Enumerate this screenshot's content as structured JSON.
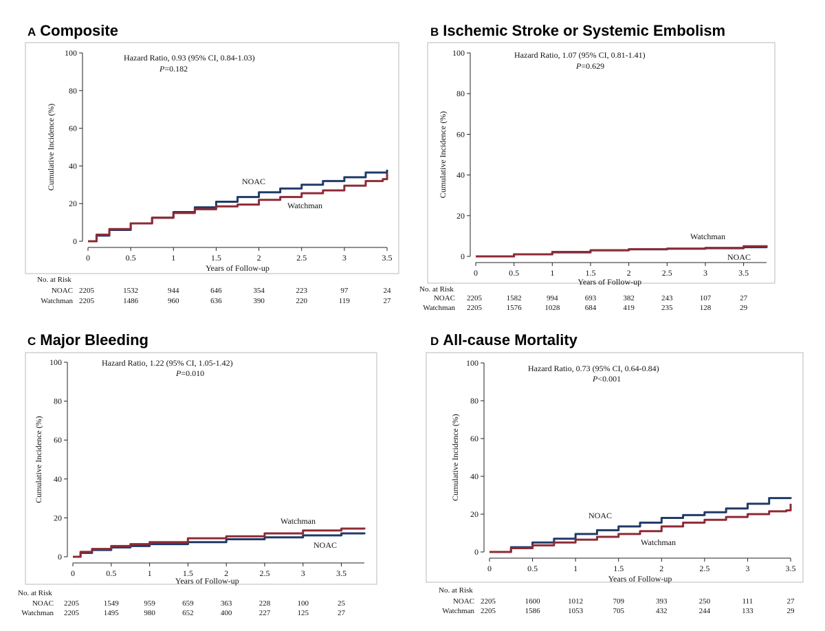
{
  "colors": {
    "noac": "#1f3a68",
    "watchman": "#8e2a35",
    "axis": "#222222",
    "text": "#111111"
  },
  "chart_data": [
    {
      "type": "line",
      "letter": "A",
      "title": "Composite",
      "ylabel": "Cumulative Incidence (%)",
      "xlabel": "Years of Follow-up",
      "ylim": [
        0,
        100
      ],
      "yticks": [
        "0",
        "20",
        "40",
        "60",
        "80",
        "100"
      ],
      "xlim": [
        0,
        3.5
      ],
      "xticks": [
        "0",
        "0.5",
        "1",
        "1.5",
        "2",
        "2.5",
        "3",
        "3.5"
      ],
      "hr_text": "Hazard Ratio, 0.93 (95% CI, 0.84-1.03)",
      "p_label": "P",
      "p_value": "=0.182",
      "series": [
        {
          "name": "NOAC",
          "label": "NOAC",
          "x": [
            0,
            0.1,
            0.25,
            0.5,
            0.75,
            1,
            1.25,
            1.5,
            1.75,
            2,
            2.25,
            2.5,
            2.75,
            3,
            3.25,
            3.5
          ],
          "values": [
            0,
            3,
            6,
            9.5,
            12.5,
            15.5,
            18,
            21,
            23.5,
            26,
            28,
            30,
            32,
            34,
            36.5,
            38
          ]
        },
        {
          "name": "Watchman",
          "label": "Watchman",
          "x": [
            0,
            0.1,
            0.25,
            0.5,
            0.75,
            1,
            1.25,
            1.5,
            1.75,
            2,
            2.25,
            2.5,
            2.75,
            3,
            3.25,
            3.45,
            3.5
          ],
          "values": [
            0,
            3.5,
            6.5,
            9.5,
            12.5,
            15,
            17,
            18.5,
            19.5,
            22,
            23.5,
            25.5,
            27,
            29.5,
            32,
            33,
            36
          ]
        }
      ],
      "risk_table": {
        "header": "No. at Risk",
        "rows": [
          {
            "label": "NOAC",
            "first": "2205",
            "values": [
              "1532",
              "944",
              "646",
              "354",
              "223",
              "97",
              "24"
            ]
          },
          {
            "label": "Watchman",
            "first": "2205",
            "values": [
              "1486",
              "960",
              "636",
              "390",
              "220",
              "119",
              "27"
            ]
          }
        ]
      }
    },
    {
      "type": "line",
      "letter": "B",
      "title": "Ischemic Stroke or Systemic Embolism",
      "ylabel": "Cumulative Incidence (%)",
      "xlabel": "Years of Follow-up",
      "ylim": [
        0,
        100
      ],
      "yticks": [
        "0",
        "20",
        "40",
        "60",
        "80",
        "100"
      ],
      "xlim": [
        0,
        3.8
      ],
      "xticks": [
        "0",
        "0.5",
        "1",
        "1.5",
        "2",
        "2.5",
        "3",
        "3.5"
      ],
      "hr_text": "Hazard Ratio, 1.07 (95% CI, 0.81-1.41)",
      "p_label": "P",
      "p_value": "=0.629",
      "series": [
        {
          "name": "NOAC",
          "label": "NOAC",
          "x": [
            0,
            0.5,
            1,
            1.5,
            2,
            2.5,
            3,
            3.5,
            3.8
          ],
          "values": [
            0,
            1,
            2,
            3,
            3.5,
            3.8,
            4,
            4.5,
            5
          ]
        },
        {
          "name": "Watchman",
          "label": "Watchman",
          "x": [
            0,
            0.5,
            1,
            1.5,
            2,
            2.5,
            3,
            3.5,
            3.8
          ],
          "values": [
            0,
            1,
            2.2,
            3,
            3.5,
            3.8,
            4.2,
            5,
            5.5
          ]
        }
      ],
      "risk_table": {
        "header": "No. at Risk",
        "rows": [
          {
            "label": "NOAC",
            "first": "2205",
            "values": [
              "1582",
              "994",
              "693",
              "382",
              "243",
              "107",
              "27"
            ]
          },
          {
            "label": "Watchman",
            "first": "2205",
            "values": [
              "1576",
              "1028",
              "684",
              "419",
              "235",
              "128",
              "29"
            ]
          }
        ]
      }
    },
    {
      "type": "line",
      "letter": "C",
      "title": "Major Bleeding",
      "ylabel": "Cumulative Incidence (%)",
      "xlabel": "Years of Follow-up",
      "ylim": [
        0,
        100
      ],
      "yticks": [
        "0",
        "20",
        "40",
        "60",
        "80",
        "100"
      ],
      "xlim": [
        0,
        3.8
      ],
      "xticks": [
        "0",
        "0.5",
        "1",
        "1.5",
        "2",
        "2.5",
        "3",
        "3.5"
      ],
      "hr_text": "Hazard Ratio, 1.22 (95% CI, 1.05-1.42)",
      "p_label": "P",
      "p_value": "=0.010",
      "series": [
        {
          "name": "NOAC",
          "label": "NOAC",
          "x": [
            0,
            0.1,
            0.25,
            0.5,
            0.75,
            1,
            1.5,
            2,
            2.5,
            3,
            3.5,
            3.8
          ],
          "values": [
            0,
            2,
            3.5,
            4.8,
            5.5,
            6.5,
            7.5,
            9,
            10,
            11,
            12,
            12.5
          ]
        },
        {
          "name": "Watchman",
          "label": "Watchman",
          "x": [
            0,
            0.1,
            0.25,
            0.5,
            0.75,
            1,
            1.5,
            2,
            2.5,
            3,
            3.5,
            3.8
          ],
          "values": [
            0,
            2.5,
            4,
            5.5,
            6.5,
            7.5,
            9.5,
            10.5,
            12,
            13.5,
            14.5,
            15
          ]
        }
      ],
      "risk_table": {
        "header": "No. at Risk",
        "rows": [
          {
            "label": "NOAC",
            "first": "2205",
            "values": [
              "1549",
              "959",
              "659",
              "363",
              "228",
              "100",
              "25"
            ]
          },
          {
            "label": "Watchman",
            "first": "2205",
            "values": [
              "1495",
              "980",
              "652",
              "400",
              "227",
              "125",
              "27"
            ]
          }
        ]
      }
    },
    {
      "type": "line",
      "letter": "D",
      "title": "All-cause Mortality",
      "ylabel": "Cumulative Incidence (%)",
      "xlabel": "Years of Follow-up",
      "ylim": [
        0,
        100
      ],
      "yticks": [
        "0",
        "20",
        "40",
        "60",
        "80",
        "100"
      ],
      "xlim": [
        0,
        3.5
      ],
      "xticks": [
        "0",
        "0.5",
        "1",
        "1.5",
        "2",
        "2.5",
        "3",
        "3.5"
      ],
      "hr_text": "Hazard Ratio, 0.73 (95% CI, 0.64-0.84)",
      "p_label": "P",
      "p_value": "<0.001",
      "series": [
        {
          "name": "NOAC",
          "label": "NOAC",
          "x": [
            0,
            0.25,
            0.5,
            0.75,
            1,
            1.25,
            1.5,
            1.75,
            2,
            2.25,
            2.5,
            2.75,
            3,
            3.25,
            3.5
          ],
          "values": [
            0,
            2.5,
            5,
            7,
            9.5,
            11.5,
            13.5,
            15.5,
            18,
            19.5,
            21,
            23,
            25.5,
            28.5,
            29
          ]
        },
        {
          "name": "Watchman",
          "label": "Watchman",
          "x": [
            0,
            0.25,
            0.5,
            0.75,
            1,
            1.25,
            1.5,
            1.75,
            2,
            2.25,
            2.5,
            2.75,
            3,
            3.25,
            3.45,
            3.5
          ],
          "values": [
            0,
            2,
            3.5,
            5,
            6.5,
            8,
            9.5,
            11,
            13.5,
            15.5,
            17,
            18.5,
            20,
            21.5,
            22,
            25.5
          ]
        }
      ],
      "risk_table": {
        "header": "No. at Risk",
        "rows": [
          {
            "label": "NOAC",
            "first": "2205",
            "values": [
              "1600",
              "1012",
              "709",
              "393",
              "250",
              "111",
              "27"
            ]
          },
          {
            "label": "Watchman",
            "first": "2205",
            "values": [
              "1586",
              "1053",
              "705",
              "432",
              "244",
              "133",
              "29"
            ]
          }
        ]
      }
    }
  ]
}
